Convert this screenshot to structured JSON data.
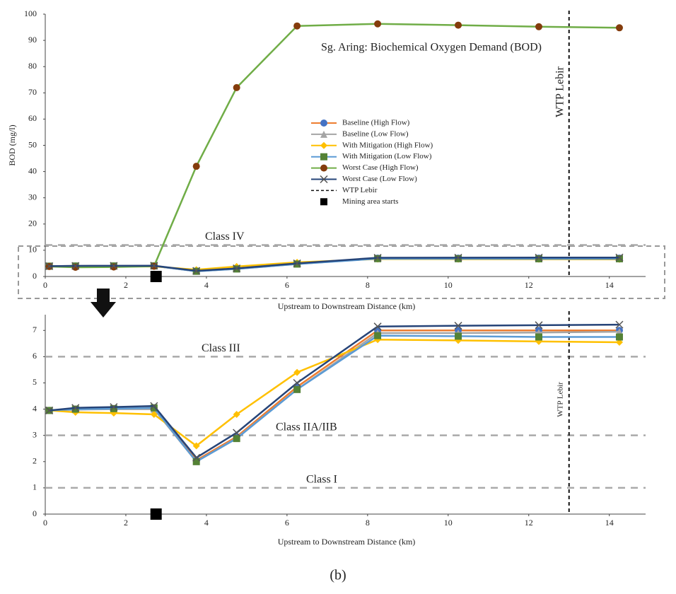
{
  "chart_data": [
    {
      "type": "line",
      "title": "Sg. Aring: Biochemical Oxygen Demand (BOD)",
      "x_label": "Upstream to Downstream Distance (km)",
      "y_label": "BOD (mg/l)",
      "x": [
        0.1,
        0.75,
        1.7,
        2.7,
        3.75,
        4.75,
        6.25,
        8.25,
        10.25,
        12.25,
        14.25
      ],
      "xlim": [
        0,
        14.9
      ],
      "xticks": [
        0,
        2,
        4,
        6,
        8,
        10,
        12,
        14
      ],
      "ylim": [
        0,
        100
      ],
      "yticks": [
        0,
        10,
        20,
        30,
        40,
        50,
        60,
        70,
        80,
        90,
        100
      ],
      "series": [
        {
          "name": "Baseline (High Flow)",
          "color": "#ed7d31",
          "marker_color": "#4472c4",
          "marker": "circle",
          "values": [
            3.95,
            4.0,
            4.02,
            4.05,
            2.05,
            2.95,
            4.85,
            7.0,
            7.0,
            7.0,
            7.0
          ]
        },
        {
          "name": "Baseline (Low Flow)",
          "color": "#a5a5a5",
          "marker_color": "#a5a5a5",
          "marker": "triangle",
          "values": [
            3.95,
            3.98,
            4.0,
            4.0,
            2.0,
            2.9,
            4.75,
            6.9,
            6.9,
            6.92,
            6.95
          ]
        },
        {
          "name": "With Mitigation (High Flow)",
          "color": "#ffc000",
          "marker_color": "#ffc000",
          "marker": "diamond",
          "values": [
            3.95,
            3.88,
            3.85,
            3.8,
            2.6,
            3.8,
            5.4,
            6.65,
            6.62,
            6.58,
            6.55
          ]
        },
        {
          "name": "With Mitigation (Low Flow)",
          "color": "#5b9bd5",
          "marker_color": "#548235",
          "marker": "square",
          "values": [
            3.95,
            4.0,
            4.02,
            4.05,
            2.0,
            2.88,
            4.75,
            6.8,
            6.78,
            6.75,
            6.75
          ]
        },
        {
          "name": "Worst Case (High Flow)",
          "color": "#70ad47",
          "marker_color": "#843c0c",
          "marker": "circle",
          "values": [
            3.8,
            3.5,
            3.6,
            3.9,
            42,
            72,
            95.5,
            96.3,
            95.8,
            95.2,
            94.8
          ]
        },
        {
          "name": "Worst Case (Low Flow)",
          "color": "#264478",
          "marker_color": "#555555",
          "marker": "x",
          "values": [
            3.95,
            4.05,
            4.08,
            4.12,
            2.15,
            3.1,
            5.0,
            7.15,
            7.18,
            7.2,
            7.22
          ]
        }
      ],
      "hlines": [
        {
          "label": "Class IV",
          "value": 12
        }
      ],
      "vlines": [
        {
          "label": "WTP Lebir",
          "value": 13
        }
      ],
      "point_marker": {
        "label": "Mining area starts",
        "x": 2.75,
        "y": 0
      },
      "legend": "center"
    },
    {
      "type": "line",
      "x_label": "Upstream to Downstream Distance (km)",
      "x": [
        0.1,
        0.75,
        1.7,
        2.7,
        3.75,
        4.75,
        6.25,
        8.25,
        10.25,
        12.25,
        14.25
      ],
      "xlim": [
        0,
        14.9
      ],
      "xticks": [
        0,
        2,
        4,
        6,
        8,
        10,
        12,
        14
      ],
      "ylim": [
        0,
        7.6
      ],
      "yticks": [
        0,
        1,
        2,
        3,
        4,
        5,
        6,
        7
      ],
      "series": [
        {
          "color": "#ed7d31",
          "marker_color": "#4472c4",
          "marker": "circle",
          "values": [
            3.95,
            4.0,
            4.02,
            4.05,
            2.05,
            2.95,
            4.85,
            7.0,
            7.0,
            7.0,
            7.0
          ]
        },
        {
          "color": "#a5a5a5",
          "marker_color": "#a5a5a5",
          "marker": "triangle",
          "values": [
            3.95,
            3.98,
            4.0,
            4.0,
            2.0,
            2.9,
            4.75,
            6.9,
            6.9,
            6.92,
            6.95
          ]
        },
        {
          "color": "#ffc000",
          "marker_color": "#ffc000",
          "marker": "diamond",
          "values": [
            3.95,
            3.88,
            3.85,
            3.8,
            2.6,
            3.8,
            5.4,
            6.65,
            6.62,
            6.58,
            6.55
          ]
        },
        {
          "color": "#5b9bd5",
          "marker_color": "#548235",
          "marker": "square",
          "values": [
            3.95,
            4.0,
            4.02,
            4.05,
            2.0,
            2.88,
            4.75,
            6.8,
            6.78,
            6.75,
            6.75
          ]
        },
        {
          "color": "#264478",
          "marker_color": "#555555",
          "marker": "x",
          "values": [
            3.95,
            4.05,
            4.08,
            4.12,
            2.15,
            3.1,
            5.0,
            7.15,
            7.18,
            7.2,
            7.22
          ]
        }
      ],
      "hlines": [
        {
          "label": "Class III",
          "value": 6
        },
        {
          "label": "Class IIA/IIB",
          "value": 3
        },
        {
          "label": "Class I",
          "value": 1
        }
      ],
      "vlines": [
        {
          "label": "WTP Lebir",
          "value": 13
        }
      ],
      "point_marker": {
        "x": 2.75,
        "y": 0
      }
    }
  ],
  "caption": "(b)"
}
